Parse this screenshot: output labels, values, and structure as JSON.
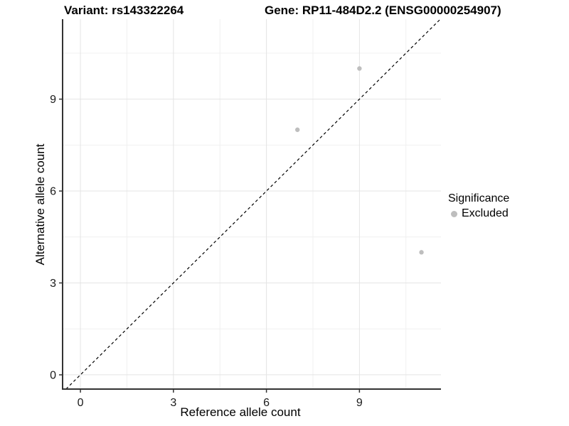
{
  "titles": {
    "left": "Variant: rs143322264",
    "right": "Gene: RP11-484D2.2 (ENSG00000254907)"
  },
  "chart_data": {
    "type": "scatter",
    "xlabel": "Reference allele count",
    "ylabel": "Alternative allele count",
    "x_ticks": [
      0,
      3,
      6,
      9
    ],
    "y_ticks": [
      0,
      3,
      6,
      9
    ],
    "x_minor_ticks": [
      1.5,
      4.5,
      7.5,
      10.5
    ],
    "y_minor_ticks": [
      1.5,
      4.5,
      7.5,
      10.5
    ],
    "xlim": [
      -0.575,
      11.63
    ],
    "ylim": [
      -0.465,
      11.61
    ],
    "grid": true,
    "identity_line": {
      "style": "dashed",
      "color": "#000000"
    },
    "series": [
      {
        "name": "Excluded",
        "color": "#bebebe",
        "points": [
          [
            7,
            8
          ],
          [
            9,
            10
          ],
          [
            11,
            4
          ]
        ]
      }
    ],
    "legend": {
      "title": "Significance",
      "position": "right",
      "entries": [
        {
          "label": "Excluded",
          "color": "#bebebe"
        }
      ]
    },
    "colors": {
      "axis": "#333333",
      "tick_label": "#1a1a1a",
      "grid_major": "#e4e4e4",
      "grid_minor": "#f0f0f0"
    }
  }
}
